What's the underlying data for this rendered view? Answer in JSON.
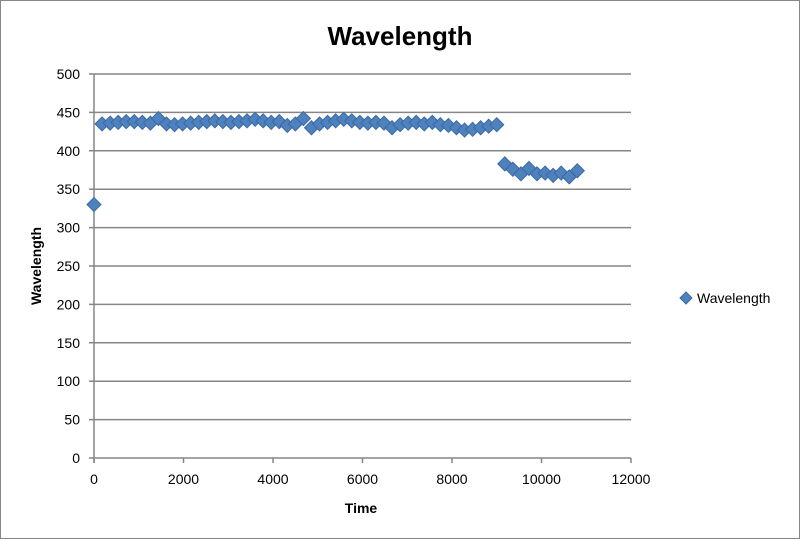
{
  "chart_data": {
    "type": "scatter",
    "title": "Wavelength",
    "xlabel": "Time",
    "ylabel": "Wavelength",
    "xlim": [
      0,
      12000
    ],
    "ylim": [
      0,
      500
    ],
    "xticks": [
      0,
      2000,
      4000,
      6000,
      8000,
      10000,
      12000
    ],
    "yticks": [
      0,
      50,
      100,
      150,
      200,
      250,
      300,
      350,
      400,
      450,
      500
    ],
    "grid": "horizontal major",
    "legend": "right",
    "marker": "diamond",
    "color": "#4f81bd",
    "series": [
      {
        "name": "Wavelength",
        "x": [
          0,
          180,
          360,
          540,
          720,
          900,
          1080,
          1260,
          1440,
          1620,
          1800,
          1980,
          2160,
          2340,
          2520,
          2700,
          2880,
          3060,
          3240,
          3420,
          3600,
          3780,
          3960,
          4140,
          4320,
          4500,
          4680,
          4860,
          5040,
          5220,
          5400,
          5580,
          5760,
          5940,
          6120,
          6300,
          6480,
          6660,
          6840,
          7020,
          7200,
          7380,
          7560,
          7740,
          7920,
          8100,
          8280,
          8460,
          8640,
          8820,
          9000,
          9180,
          9360,
          9540,
          9720,
          9900,
          10080,
          10260,
          10440,
          10620,
          10800
        ],
        "y": [
          330,
          435,
          436,
          437,
          438,
          438,
          437,
          436,
          442,
          435,
          434,
          435,
          436,
          437,
          438,
          439,
          438,
          437,
          438,
          439,
          441,
          439,
          437,
          438,
          433,
          435,
          442,
          430,
          435,
          437,
          439,
          441,
          439,
          437,
          436,
          437,
          436,
          430,
          434,
          436,
          437,
          435,
          437,
          434,
          433,
          430,
          427,
          428,
          430,
          432,
          434,
          383,
          376,
          370,
          377,
          370,
          371,
          368,
          371,
          366,
          374
        ]
      }
    ]
  }
}
